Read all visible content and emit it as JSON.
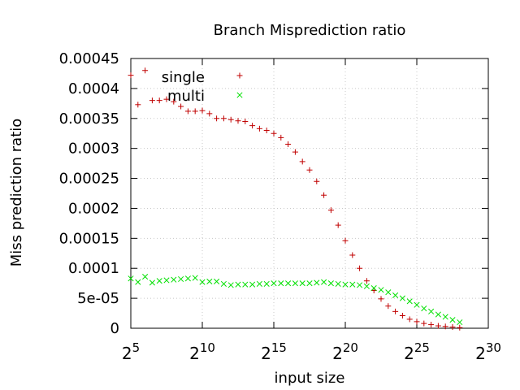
{
  "chart_data": {
    "type": "scatter",
    "title": "Branch Misprediction ratio",
    "xlabel": "input size",
    "ylabel": "Miss prediction ratio",
    "x_scale": "log2",
    "xlim": [
      5,
      30
    ],
    "ylim": [
      0,
      0.00045
    ],
    "x_ticks": [
      {
        "exp": 5,
        "base": "2",
        "sup": "5"
      },
      {
        "exp": 10,
        "base": "2",
        "sup": "10"
      },
      {
        "exp": 15,
        "base": "2",
        "sup": "15"
      },
      {
        "exp": 20,
        "base": "2",
        "sup": "20"
      },
      {
        "exp": 25,
        "base": "2",
        "sup": "25"
      },
      {
        "exp": 30,
        "base": "2",
        "sup": "30"
      }
    ],
    "y_ticks": [
      {
        "value": 0,
        "label": "0"
      },
      {
        "value": 5e-05,
        "label": "5e-05"
      },
      {
        "value": 0.0001,
        "label": "0.0001"
      },
      {
        "value": 0.00015,
        "label": "0.00015"
      },
      {
        "value": 0.0002,
        "label": "0.0002"
      },
      {
        "value": 0.00025,
        "label": "0.00025"
      },
      {
        "value": 0.0003,
        "label": "0.0003"
      },
      {
        "value": 0.00035,
        "label": "0.00035"
      },
      {
        "value": 0.0004,
        "label": "0.0004"
      },
      {
        "value": 0.00045,
        "label": "0.00045"
      }
    ],
    "grid": true,
    "legend_position": "top-left",
    "series": [
      {
        "name": "single",
        "marker": "+",
        "color": "#c00000",
        "x": [
          5.0,
          5.5,
          6.0,
          6.5,
          7.0,
          7.5,
          8.0,
          8.5,
          9.0,
          9.5,
          10.0,
          10.5,
          11.0,
          11.5,
          12.0,
          12.5,
          13.0,
          13.5,
          14.0,
          14.5,
          15.0,
          15.5,
          16.0,
          16.5,
          17.0,
          17.5,
          18.0,
          18.5,
          19.0,
          19.5,
          20.0,
          20.5,
          21.0,
          21.5,
          22.0,
          22.5,
          23.0,
          23.5,
          24.0,
          24.5,
          25.0,
          25.5,
          26.0,
          26.5,
          27.0,
          27.5,
          28.0
        ],
        "y": [
          0.000422,
          0.000373,
          0.00043,
          0.00038,
          0.00038,
          0.000382,
          0.000378,
          0.00037,
          0.000362,
          0.000362,
          0.000363,
          0.000358,
          0.00035,
          0.00035,
          0.000348,
          0.000346,
          0.000345,
          0.000338,
          0.000333,
          0.00033,
          0.000325,
          0.000318,
          0.000307,
          0.000294,
          0.000278,
          0.000264,
          0.000245,
          0.000222,
          0.000197,
          0.000172,
          0.000146,
          0.000122,
          0.0001,
          7.9e-05,
          6.3e-05,
          4.9e-05,
          3.7e-05,
          2.8e-05,
          2.1e-05,
          1.5e-05,
          1.1e-05,
          8e-06,
          6e-06,
          4e-06,
          3e-06,
          2e-06,
          1e-06
        ]
      },
      {
        "name": "multi",
        "marker": "x",
        "color": "#00e000",
        "x": [
          5.0,
          5.5,
          6.0,
          6.5,
          7.0,
          7.5,
          8.0,
          8.5,
          9.0,
          9.5,
          10.0,
          10.5,
          11.0,
          11.5,
          12.0,
          12.5,
          13.0,
          13.5,
          14.0,
          14.5,
          15.0,
          15.5,
          16.0,
          16.5,
          17.0,
          17.5,
          18.0,
          18.5,
          19.0,
          19.5,
          20.0,
          20.5,
          21.0,
          21.5,
          22.0,
          22.5,
          23.0,
          23.5,
          24.0,
          24.5,
          25.0,
          25.5,
          26.0,
          26.5,
          27.0,
          27.5,
          28.0
        ],
        "y": [
          8.3e-05,
          7.7e-05,
          8.6e-05,
          7.6e-05,
          7.9e-05,
          8e-05,
          8.1e-05,
          8.2e-05,
          8.3e-05,
          8.4e-05,
          7.7e-05,
          7.8e-05,
          7.8e-05,
          7.4e-05,
          7.2e-05,
          7.3e-05,
          7.3e-05,
          7.3e-05,
          7.4e-05,
          7.4e-05,
          7.5e-05,
          7.5e-05,
          7.5e-05,
          7.5e-05,
          7.5e-05,
          7.5e-05,
          7.6e-05,
          7.7e-05,
          7.5e-05,
          7.4e-05,
          7.3e-05,
          7.3e-05,
          7.2e-05,
          7e-05,
          6.7e-05,
          6.4e-05,
          6e-05,
          5.5e-05,
          5e-05,
          4.5e-05,
          3.9e-05,
          3.3e-05,
          2.8e-05,
          2.3e-05,
          1.9e-05,
          1.4e-05,
          1e-05
        ]
      }
    ]
  }
}
